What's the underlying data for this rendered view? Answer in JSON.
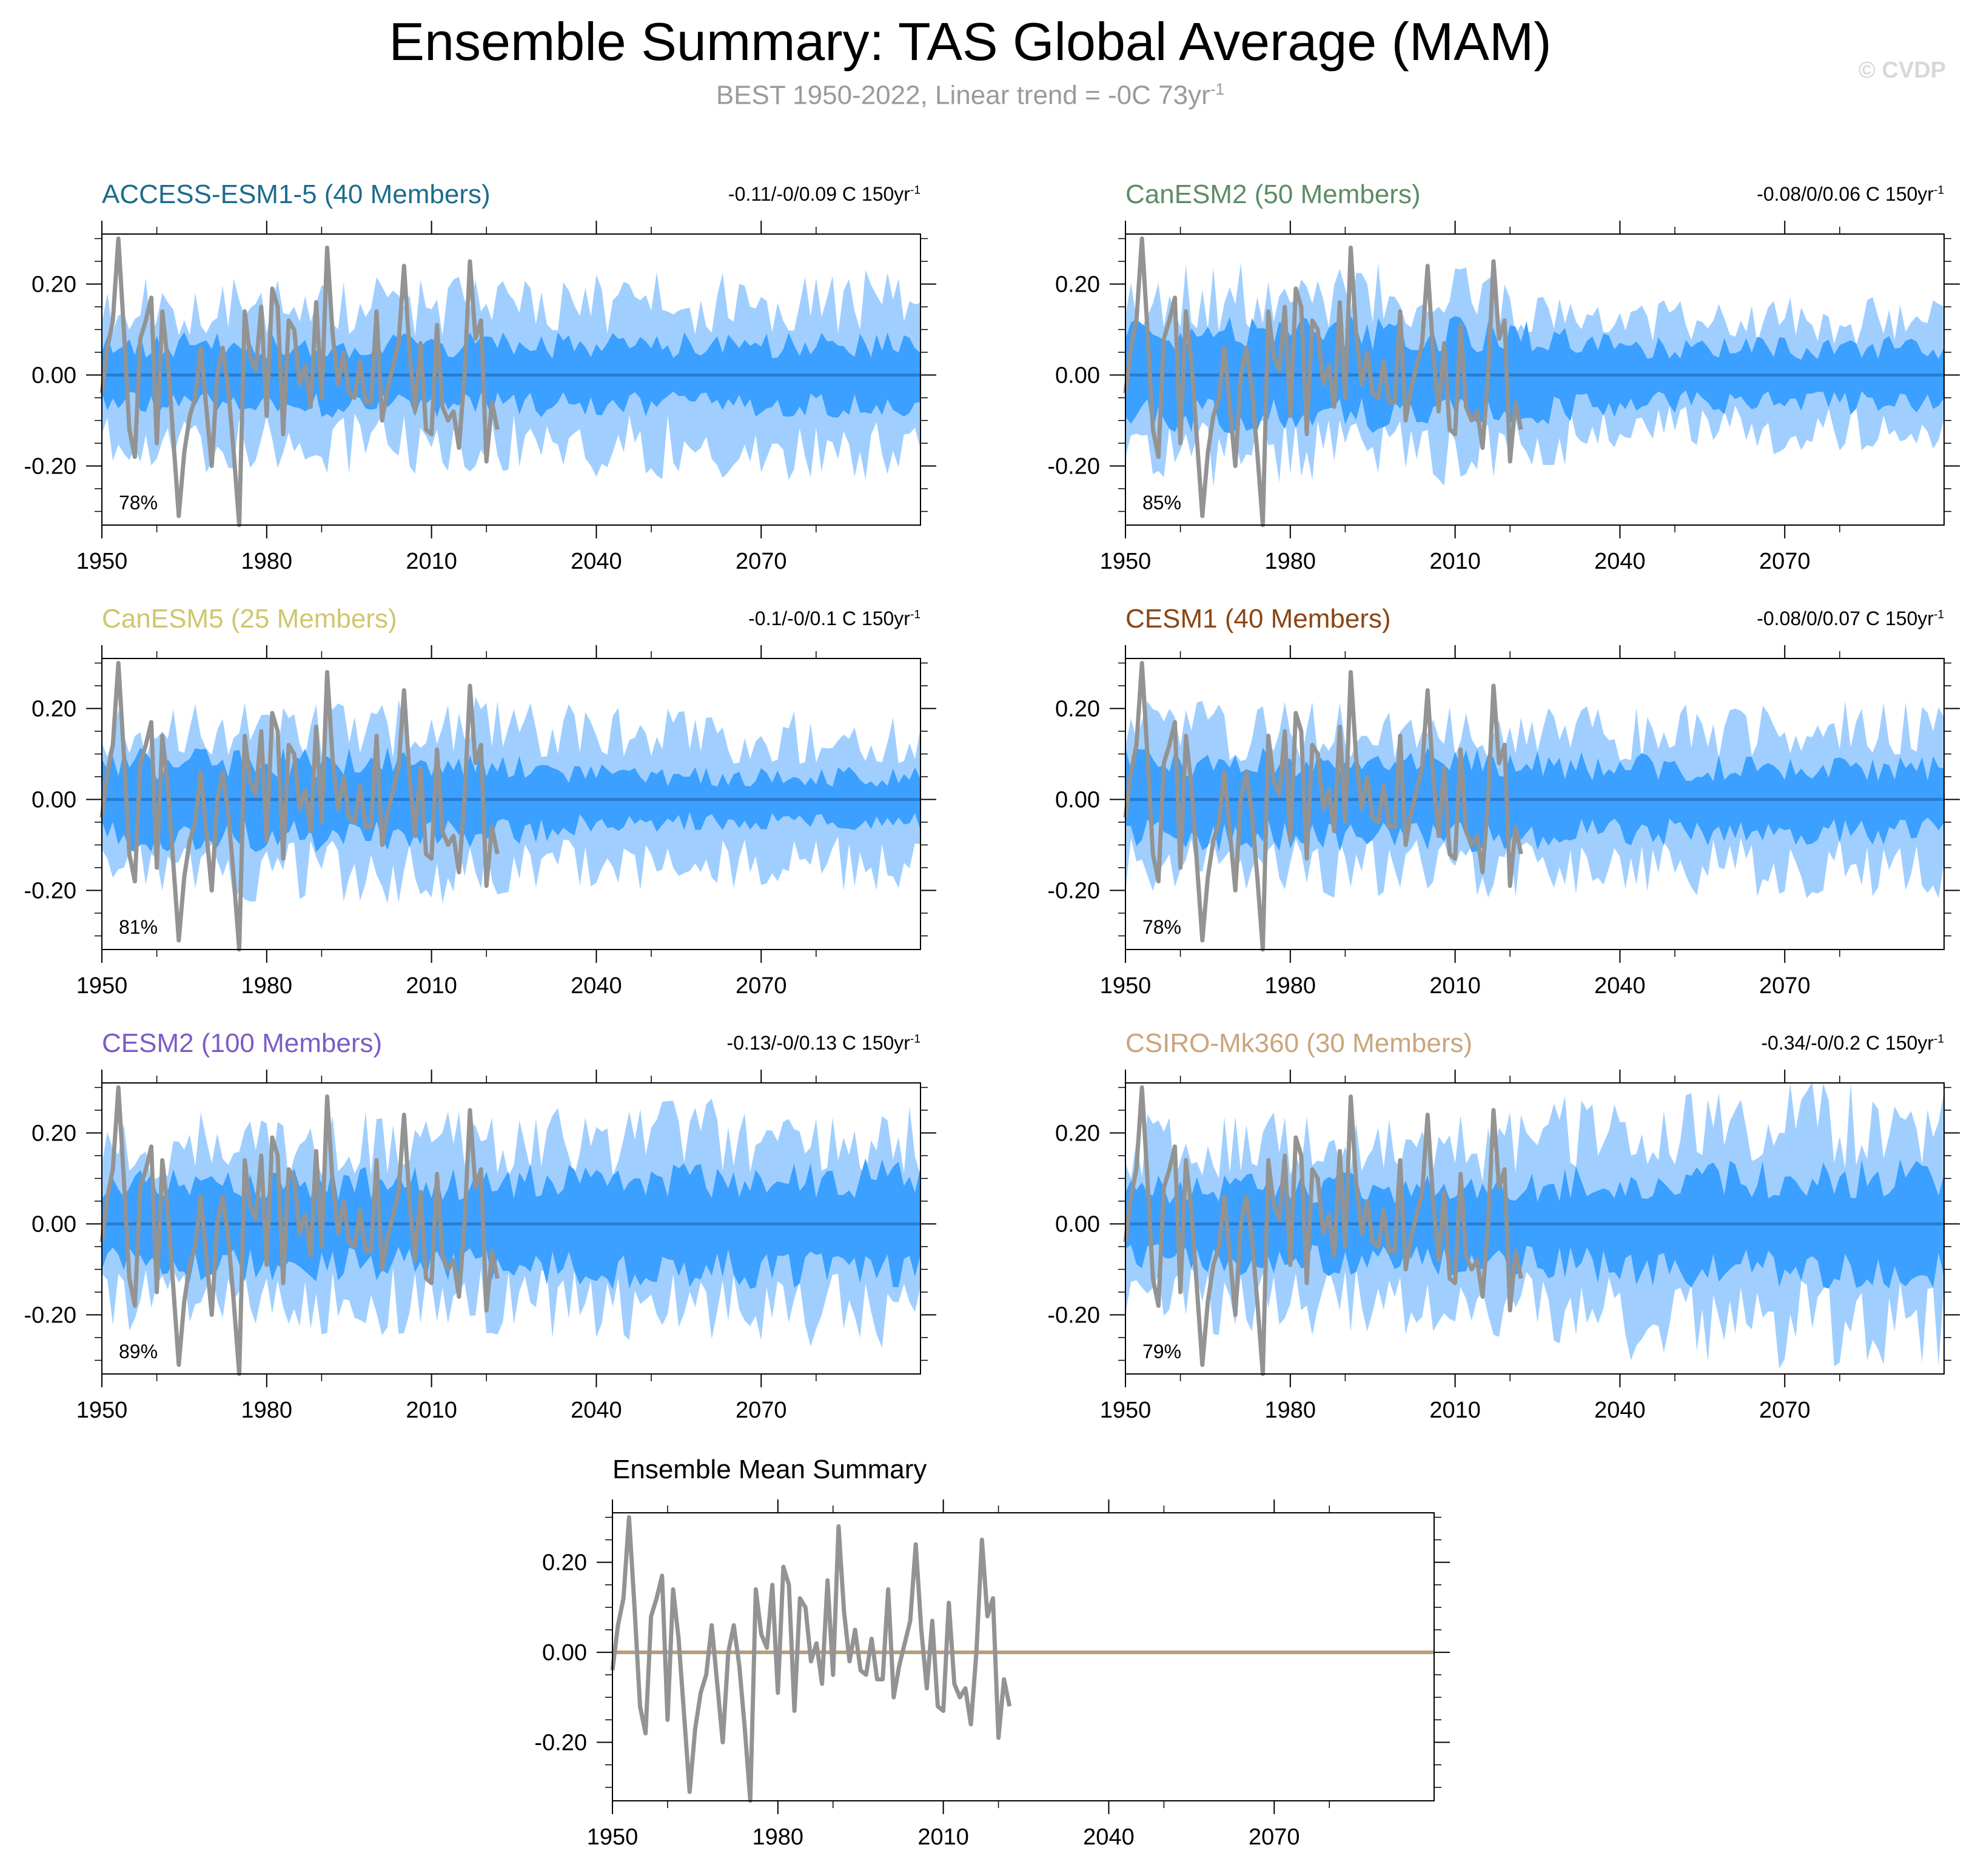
{
  "title": "Ensemble Summary: TAS Global Average (MAM)",
  "subtitle_main": "BEST 1950-2022, Linear trend = -0C 73yr",
  "subtitle_sup": "-1",
  "watermark": "© CVDP",
  "colors": {
    "outer_band": "#a0cfff",
    "inner_band": "#3ba0ff",
    "ens_mean": "#2a7dd0",
    "obs": "#939393",
    "summary_mean": "#b89c7a"
  },
  "axis": {
    "x_ticks": [
      1950,
      1980,
      2010,
      2040,
      2070
    ],
    "x_tick_labels": [
      "1950",
      "1980",
      "2010",
      "2040",
      "2070"
    ],
    "xlim": [
      1950,
      2099
    ],
    "y_ticks": [
      0.2,
      0.0,
      -0.2
    ],
    "y_tick_labels": [
      "0.20",
      "0.00",
      "-0.20"
    ],
    "ylim": [
      -0.33,
      0.31
    ]
  },
  "observations": {
    "name": "BEST",
    "years": [
      1950,
      1951,
      1952,
      1953,
      1954,
      1955,
      1956,
      1957,
      1958,
      1959,
      1960,
      1961,
      1962,
      1963,
      1964,
      1965,
      1966,
      1967,
      1968,
      1969,
      1970,
      1971,
      1972,
      1973,
      1974,
      1975,
      1976,
      1977,
      1978,
      1979,
      1980,
      1981,
      1982,
      1983,
      1984,
      1985,
      1986,
      1987,
      1988,
      1989,
      1990,
      1991,
      1992,
      1993,
      1994,
      1995,
      1996,
      1997,
      1998,
      1999,
      2000,
      2001,
      2002,
      2003,
      2004,
      2005,
      2006,
      2007,
      2008,
      2009,
      2010,
      2011,
      2012,
      2013,
      2014,
      2015,
      2016,
      2017,
      2018,
      2019,
      2020,
      2021,
      2022
    ],
    "values": [
      -0.04,
      0.06,
      0.12,
      0.3,
      0.1,
      -0.12,
      -0.18,
      0.08,
      0.12,
      0.17,
      -0.15,
      0.14,
      0.03,
      -0.14,
      -0.31,
      -0.17,
      -0.09,
      -0.05,
      0.06,
      -0.07,
      -0.2,
      0.0,
      0.06,
      -0.03,
      -0.17,
      -0.33,
      0.14,
      0.04,
      0.01,
      0.15,
      -0.09,
      0.19,
      0.15,
      -0.13,
      0.12,
      0.1,
      -0.02,
      0.02,
      -0.07,
      0.16,
      -0.05,
      0.28,
      0.09,
      -0.02,
      0.05,
      -0.04,
      -0.05,
      0.03,
      -0.06,
      -0.06,
      0.14,
      -0.1,
      -0.03,
      0.02,
      0.07,
      0.24,
      0.05,
      -0.08,
      0.07,
      -0.12,
      -0.13,
      0.11,
      -0.07,
      -0.1,
      -0.08,
      -0.16,
      0.0,
      0.25,
      0.08,
      0.12,
      -0.19,
      -0.06,
      -0.12
    ]
  },
  "panels": [
    {
      "name": "ACCESS-ESM1-5",
      "title": "ACCESS-ESM1-5 (40 Members)",
      "title_color": "#1d6c8c",
      "trend_text": "-0.11/-0/0.09 C 150yr",
      "trend_sup": "-1",
      "percent": "78%",
      "inner": 0.065,
      "outer": 0.15,
      "late_inner": 0.065,
      "late_outer": 0.16,
      "seed": 11
    },
    {
      "name": "CanESM2",
      "title": "CanESM2 (50 Members)",
      "title_color": "#5c8c66",
      "trend_text": "-0.08/0/0.06 C 150yr",
      "trend_sup": "-1",
      "percent": "85%",
      "inner": 0.09,
      "outer": 0.17,
      "late_inner": 0.06,
      "late_outer": 0.12,
      "seed": 23
    },
    {
      "name": "CanESM5",
      "title": "CanESM5 (25 Members)",
      "title_color": "#cfc66e",
      "trend_text": "-0.1/-0/0.1 C 150yr",
      "trend_sup": "-1",
      "percent": "81%",
      "inner": 0.08,
      "outer": 0.16,
      "late_inner": 0.05,
      "late_outer": 0.14,
      "seed": 37
    },
    {
      "name": "CESM1",
      "title": "CESM1 (40 Members)",
      "title_color": "#8b4513",
      "trend_text": "-0.08/0/0.07 C 150yr",
      "trend_sup": "-1",
      "percent": "78%",
      "inner": 0.08,
      "outer": 0.15,
      "late_inner": 0.07,
      "late_outer": 0.15,
      "seed": 41
    },
    {
      "name": "CESM2",
      "title": "CESM2 (100 Members)",
      "title_color": "#7c5cc6",
      "trend_text": "-0.13/-0/0.13 C 150yr",
      "trend_sup": "-1",
      "percent": "89%",
      "inner": 0.09,
      "outer": 0.17,
      "late_inner": 0.1,
      "late_outer": 0.19,
      "seed": 53
    },
    {
      "name": "CSIRO-Mk360",
      "title": "CSIRO-Mk360 (30 Members)",
      "title_color": "#caa57c",
      "trend_text": "-0.34/-0/0.2 C 150yr",
      "trend_sup": "-1",
      "percent": "79%",
      "inner": 0.08,
      "outer": 0.17,
      "late_inner": 0.1,
      "late_outer": 0.22,
      "seed": 67
    }
  ],
  "summary_panel": {
    "title": "Ensemble Mean Summary",
    "ensemble_mean_value": 0.0
  },
  "chart_data": {
    "type": "area",
    "title": "Ensemble Summary: TAS Global Average (MAM)",
    "xlabel": "",
    "ylabel": "",
    "xlim": [
      1950,
      2099
    ],
    "ylim": [
      -0.33,
      0.31
    ],
    "series": [
      {
        "name": "BEST observations",
        "type": "line",
        "x_start": 1950,
        "x_end": 2022
      },
      {
        "name": "Ensemble mean",
        "type": "line",
        "value": 0.0
      },
      {
        "name": "Ensemble 10-90% spread",
        "type": "area"
      },
      {
        "name": "Ensemble 25-75% spread",
        "type": "area"
      }
    ]
  }
}
